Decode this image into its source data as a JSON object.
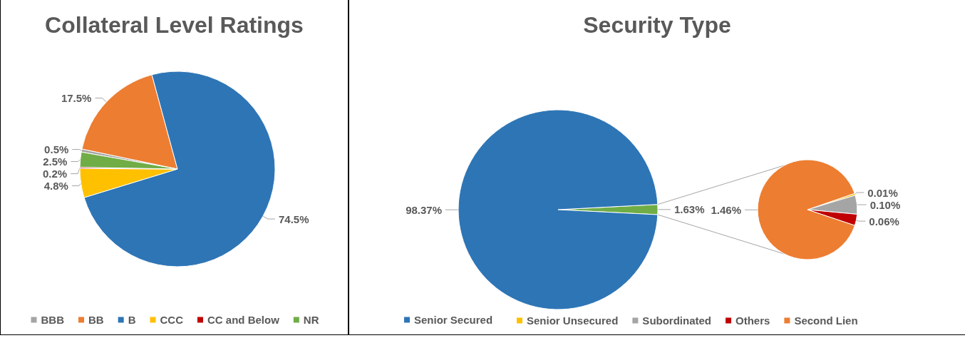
{
  "chart_data": [
    {
      "type": "pie",
      "title": "Collateral Level Ratings",
      "categories": [
        "BBB",
        "BB",
        "B",
        "CCC",
        "CC and Below",
        "NR"
      ],
      "values": [
        0.5,
        17.5,
        74.5,
        4.8,
        0.2,
        2.5
      ],
      "colors": [
        "#a5a5a5",
        "#ed7d31",
        "#2e75b6",
        "#ffc000",
        "#c00000",
        "#70ad47"
      ],
      "value_labels": [
        "0.5%",
        "17.5%",
        "74.5%",
        "4.8%",
        "0.2%",
        "2.5%"
      ],
      "legend": "bottom"
    },
    {
      "type": "pie",
      "title": "Security Type",
      "categories": [
        null,
        "Senior Secured"
      ],
      "values": [
        1.63,
        98.37
      ],
      "colors": [
        "#70ad47",
        "#2e75b6"
      ],
      "value_labels": [
        "1.63%",
        "98.37%"
      ],
      "legend": "bottom"
    },
    {
      "type": "pie",
      "categories": [
        "Senior Unsecured",
        "Subordinated",
        "Others",
        "Second Lien"
      ],
      "values": [
        0.01,
        0.1,
        0.06,
        1.46
      ],
      "colors": [
        "#ffc000",
        "#a5a5a5",
        "#c00000",
        "#ed7d31"
      ],
      "value_labels": [
        "0.01%",
        "0.10%",
        "0.06%",
        "1.46%"
      ],
      "legend": "bottom"
    }
  ]
}
